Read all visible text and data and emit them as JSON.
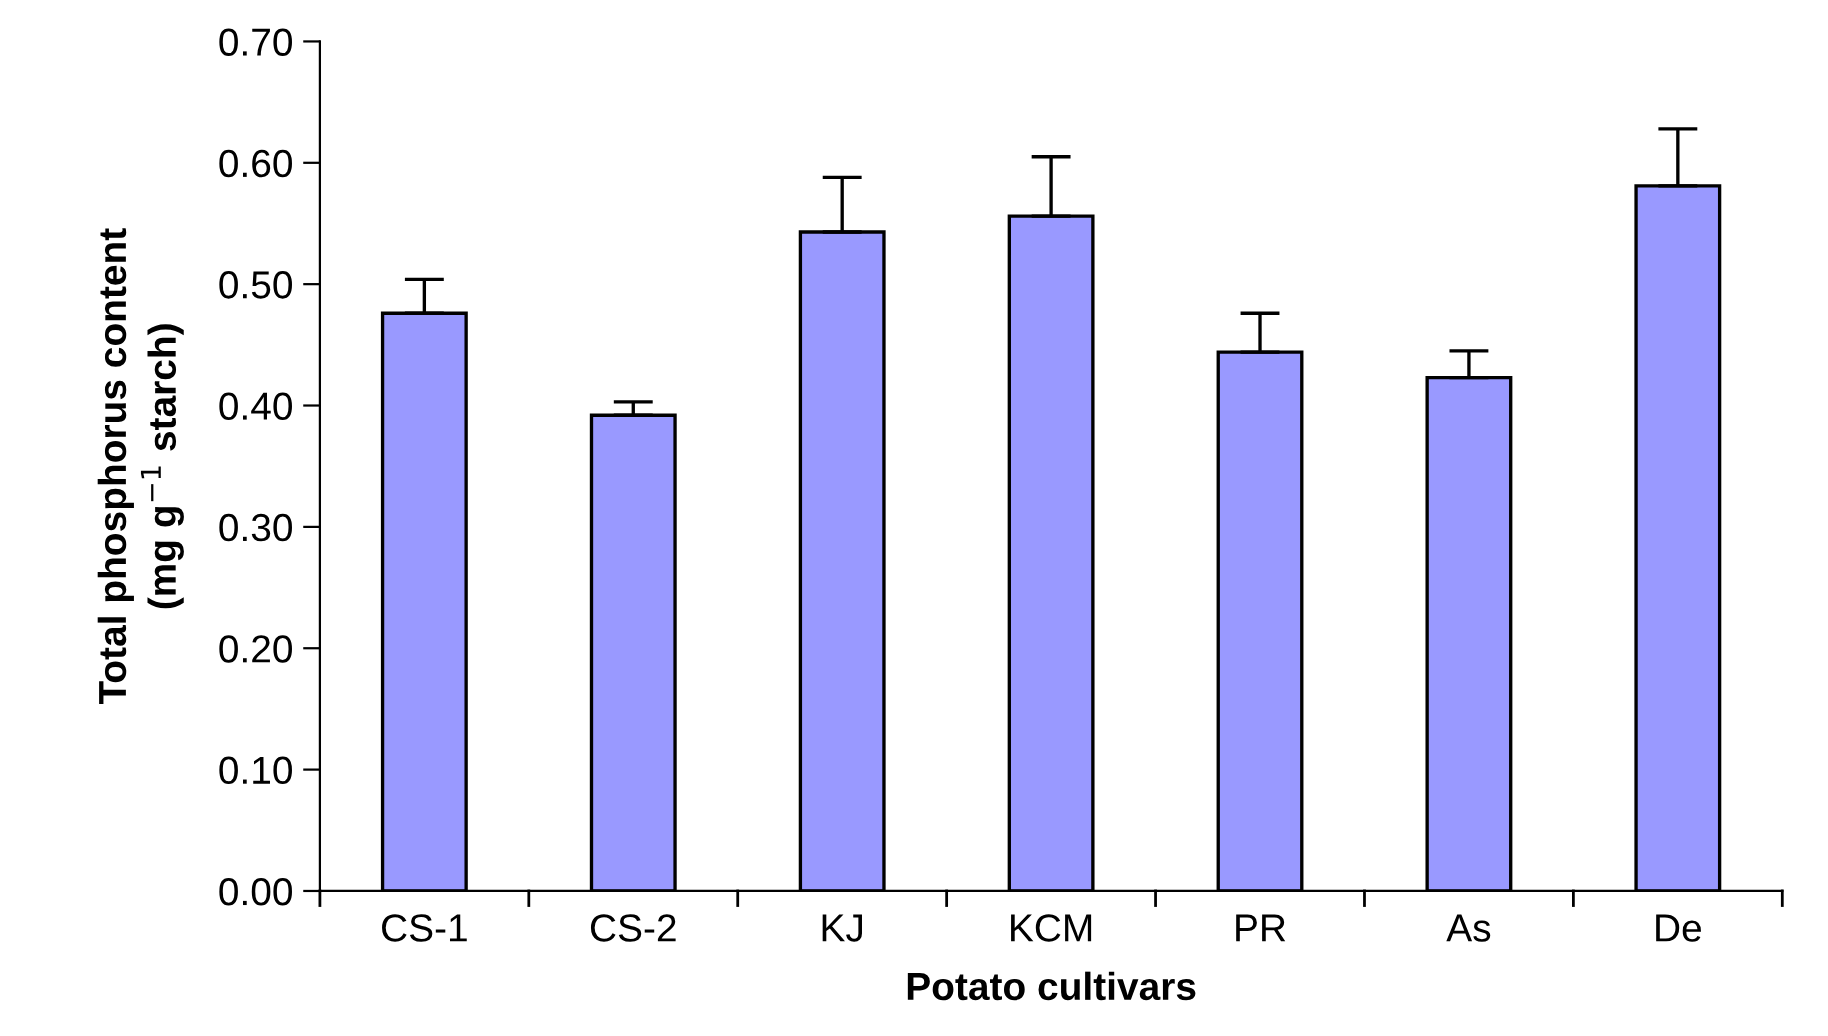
{
  "chart_data": {
    "type": "bar",
    "xlabel": "Potato cultivars",
    "ylabel": "Total phosphorus content\n(mg g$^{−1}$ starch)",
    "categories": [
      "CS-1",
      "CS-2",
      "KJ",
      "KCM",
      "PR",
      "As",
      "De"
    ],
    "values": [
      0.476,
      0.392,
      0.543,
      0.556,
      0.444,
      0.423,
      0.581
    ],
    "errors": [
      [
        0.476,
        0.504
      ],
      [
        0.392,
        0.403
      ],
      [
        0.543,
        0.588
      ],
      [
        0.556,
        0.605
      ],
      [
        0.444,
        0.476
      ],
      [
        0.423,
        0.445
      ],
      [
        0.581,
        0.628
      ]
    ],
    "color": "#9999ff",
    "ylim": [
      0,
      0.7
    ],
    "yticks": [
      {
        "value": 0,
        "label": "0.00"
      },
      {
        "value": 0.1,
        "label": "0.10"
      },
      {
        "value": 0.2,
        "label": "0.20"
      },
      {
        "value": 0.3,
        "label": "0.30"
      },
      {
        "value": 0.4,
        "label": "0.40"
      },
      {
        "value": 0.5,
        "label": "0.50"
      },
      {
        "value": 0.6,
        "label": "0.60"
      },
      {
        "value": 0.7,
        "label": "0.70"
      }
    ],
    "grid": false
  }
}
